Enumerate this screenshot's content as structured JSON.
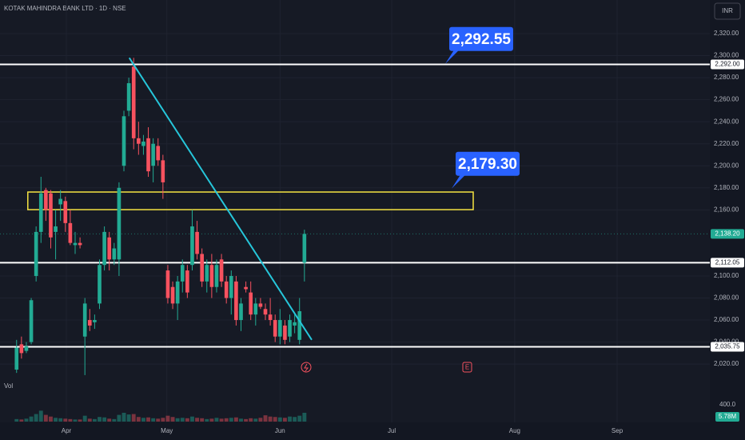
{
  "chart_data": {
    "type": "candlestick",
    "title": "KOTAK MAHINDRA BANK LTD · 1D · NSE",
    "currency": "INR",
    "up_color": "#22ab94",
    "down_color": "#f7525f",
    "open": [
      2015,
      2038,
      2032,
      2040,
      2100,
      2140,
      2178,
      2175,
      2140,
      2165,
      2168,
      2148,
      2128,
      2130,
      2045,
      2060,
      2058,
      2075,
      2110,
      2135,
      2115,
      2115,
      2200,
      2250,
      2290,
      2225,
      2218,
      2225,
      2200,
      2218,
      2205,
      2105,
      2090,
      2075,
      2095,
      2105,
      2110,
      2140,
      2120,
      2095,
      2110,
      2090,
      2115,
      2095,
      2080,
      2095,
      2060,
      2090,
      2085,
      2065,
      2075,
      2070,
      2065,
      2060,
      2045,
      2055,
      2045,
      2055,
      2042,
      2112
    ],
    "high": [
      2042,
      2045,
      2040,
      2080,
      2145,
      2190,
      2180,
      2178,
      2160,
      2178,
      2172,
      2160,
      2140,
      2135,
      2080,
      2070,
      2065,
      2115,
      2145,
      2140,
      2130,
      2185,
      2250,
      2280,
      2298,
      2240,
      2228,
      2235,
      2225,
      2225,
      2210,
      2110,
      2095,
      2100,
      2115,
      2110,
      2160,
      2150,
      2125,
      2115,
      2120,
      2115,
      2120,
      2100,
      2105,
      2100,
      2080,
      2095,
      2095,
      2080,
      2080,
      2075,
      2080,
      2065,
      2070,
      2060,
      2065,
      2065,
      2080,
      2142
    ],
    "low": [
      2012,
      2025,
      2030,
      2038,
      2095,
      2130,
      2150,
      2125,
      2115,
      2150,
      2140,
      2128,
      2120,
      2125,
      2010,
      2050,
      2052,
      2070,
      2105,
      2105,
      2110,
      2100,
      2195,
      2245,
      2215,
      2210,
      2210,
      2190,
      2185,
      2200,
      2170,
      2075,
      2070,
      2060,
      2085,
      2080,
      2105,
      2115,
      2090,
      2085,
      2080,
      2085,
      2090,
      2075,
      2065,
      2055,
      2050,
      2085,
      2060,
      2055,
      2070,
      2060,
      2055,
      2040,
      2038,
      2038,
      2040,
      2048,
      2038,
      2095
    ],
    "close": [
      2035,
      2030,
      2036,
      2078,
      2140,
      2175,
      2160,
      2135,
      2145,
      2170,
      2148,
      2130,
      2130,
      2128,
      2075,
      2055,
      2060,
      2110,
      2140,
      2115,
      2125,
      2180,
      2245,
      2275,
      2225,
      2220,
      2222,
      2195,
      2220,
      2205,
      2185,
      2080,
      2075,
      2095,
      2110,
      2085,
      2145,
      2120,
      2095,
      2110,
      2090,
      2110,
      2095,
      2080,
      2100,
      2060,
      2075,
      2088,
      2065,
      2075,
      2072,
      2065,
      2060,
      2045,
      2060,
      2042,
      2060,
      2058,
      2068,
      2138.2
    ],
    "xlim": [
      -3.4,
      142.1
    ],
    "xticks": [
      {
        "value": 10.2,
        "label": "Apr"
      },
      {
        "value": 30.8,
        "label": "May"
      },
      {
        "value": 54.0,
        "label": "Jun"
      },
      {
        "value": 76.9,
        "label": "Jul"
      },
      {
        "value": 102.1,
        "label": "Aug"
      },
      {
        "value": 123.1,
        "label": "Sep"
      }
    ],
    "ylim": [
      2009.2,
      2350.5
    ],
    "yticks": [
      {
        "value": 2320,
        "label": "2,320.00"
      },
      {
        "value": 2300,
        "label": "2,300.00"
      },
      {
        "value": 2280,
        "label": "2,280.00"
      },
      {
        "value": 2260,
        "label": "2,260.00"
      },
      {
        "value": 2240,
        "label": "2,240.00"
      },
      {
        "value": 2220,
        "label": "2,220.00"
      },
      {
        "value": 2200,
        "label": "2,200.00"
      },
      {
        "value": 2180,
        "label": "2,180.00"
      },
      {
        "value": 2160,
        "label": "2,160.00"
      },
      {
        "value": 2100,
        "label": "2,100.00"
      },
      {
        "value": 2080,
        "label": "2,080.00"
      },
      {
        "value": 2060,
        "label": "2,060.00"
      },
      {
        "value": 2040,
        "label": "2,040.00"
      },
      {
        "value": 2020,
        "label": "2,020.00"
      }
    ],
    "levels": [
      {
        "value": 2292,
        "label": "2,292.00"
      },
      {
        "value": 2112.05,
        "label": "2,112.05"
      },
      {
        "value": 2035.75,
        "label": "2,035.75"
      }
    ],
    "last_price": {
      "value": 2138.2,
      "label": "2,138.20"
    },
    "callouts": [
      {
        "value": 2292.55,
        "label": "2,292.55"
      },
      {
        "value": 2179.3,
        "label": "2,179.30"
      }
    ],
    "trendline": {
      "x": [
        23.1,
        60.5
      ],
      "y": [
        2298,
        2042
      ],
      "color": "#26c6da"
    },
    "zone": {
      "xlim": [
        2.3,
        93.6
      ],
      "ylim": [
        2160.2,
        2176.2
      ],
      "color": "#f5e342"
    },
    "events": [
      "E"
    ],
    "volume": {
      "label": "Vol",
      "values": [
        60,
        50,
        70,
        120,
        180,
        260,
        160,
        120,
        90,
        80,
        70,
        60,
        50,
        50,
        140,
        70,
        60,
        110,
        100,
        70,
        60,
        160,
        210,
        170,
        180,
        110,
        90,
        100,
        80,
        70,
        90,
        140,
        110,
        80,
        90,
        80,
        120,
        90,
        80,
        60,
        70,
        90,
        70,
        80,
        90,
        100,
        70,
        60,
        80,
        70,
        90,
        150,
        120,
        110,
        100,
        90,
        120,
        110,
        140,
        210
      ],
      "ylim": [
        0,
        705
      ],
      "yticks": [
        {
          "value": 400,
          "label": "400.0"
        }
      ],
      "last_label": "5.78M"
    }
  }
}
